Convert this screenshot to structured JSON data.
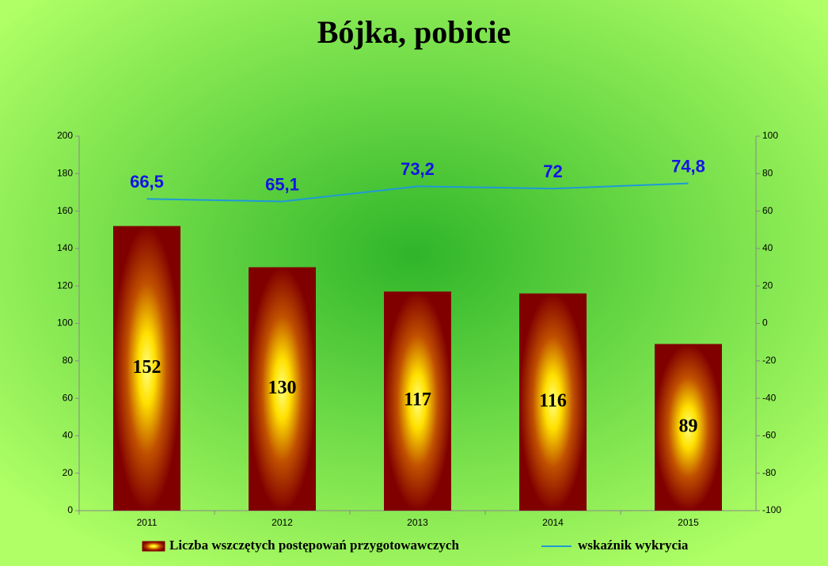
{
  "chart_data": {
    "type": "bar",
    "title": "Bójka, pobicie",
    "categories": [
      "2011",
      "2012",
      "2013",
      "2014",
      "2015"
    ],
    "series": [
      {
        "name": "Liczba wszczętych postępowań przygotowawczych",
        "color": "#800000",
        "values": [
          152,
          130,
          117,
          116,
          89
        ]
      },
      {
        "name": "wskaźnik wykrycia",
        "type": "line",
        "axis": "y2",
        "color": "#1e9ad6",
        "values": [
          66.5,
          65.1,
          73.2,
          72,
          74.8
        ],
        "value_labels": [
          "66,5",
          "65,1",
          "73,2",
          "72",
          "74,8"
        ],
        "label_color": "#1414e6"
      }
    ],
    "ylim": [
      0,
      200
    ],
    "yticks": [
      0,
      20,
      40,
      60,
      80,
      100,
      120,
      140,
      160,
      180,
      200
    ],
    "y2lim": [
      -100,
      100
    ],
    "y2ticks": [
      -100,
      -80,
      -60,
      -40,
      -20,
      0,
      20,
      40,
      60,
      80,
      100
    ],
    "grid": false,
    "legend": "bottom"
  }
}
